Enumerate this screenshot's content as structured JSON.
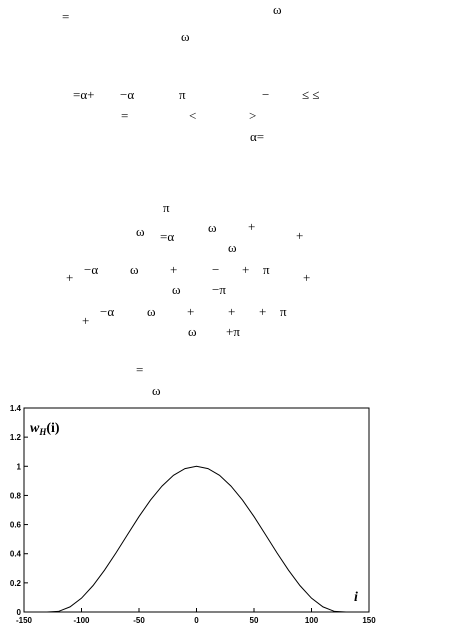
{
  "fragments": [
    "=",
    "ω",
    "ω",
    "=α+",
    "−α",
    "π",
    "−",
    "≤ ≤",
    "=",
    "<",
    ">",
    "α=",
    "π",
    "ω",
    "=α",
    "ω",
    "+",
    "+",
    "ω",
    "+",
    "−α",
    "ω",
    "+",
    "−",
    "+",
    "π",
    "+",
    "ω",
    "−π",
    "+",
    "−α",
    "ω",
    "+",
    "+",
    "+",
    "π",
    "ω",
    "+π",
    "=",
    "ω"
  ],
  "chart_data": {
    "type": "line",
    "ylabel": {
      "base": "w",
      "sub": "H",
      "arg": "(i)"
    },
    "xlabel": "i",
    "x": [
      -150,
      -140,
      -130,
      -120,
      -110,
      -100,
      -90,
      -80,
      -70,
      -60,
      -50,
      -40,
      -30,
      -20,
      -10,
      0,
      10,
      20,
      30,
      40,
      50,
      60,
      70,
      80,
      90,
      100,
      110,
      120,
      130,
      140,
      150
    ],
    "series": [
      {
        "color": "#000000",
        "values": [
          0,
          0,
          0,
          0.004,
          0.035,
          0.095,
          0.181,
          0.287,
          0.406,
          0.531,
          0.655,
          0.768,
          0.864,
          0.938,
          0.984,
          1,
          0.984,
          0.938,
          0.864,
          0.768,
          0.655,
          0.531,
          0.406,
          0.287,
          0.181,
          0.095,
          0.035,
          0.004,
          0,
          0,
          0
        ]
      }
    ],
    "xlim": [
      -150,
      150
    ],
    "ylim": [
      0,
      1.4
    ],
    "xticks": [
      -150,
      -100,
      -50,
      0,
      50,
      100,
      150
    ],
    "yticks": [
      0,
      0.2,
      0.4,
      0.6,
      0.8,
      1,
      1.2,
      1.4
    ]
  }
}
